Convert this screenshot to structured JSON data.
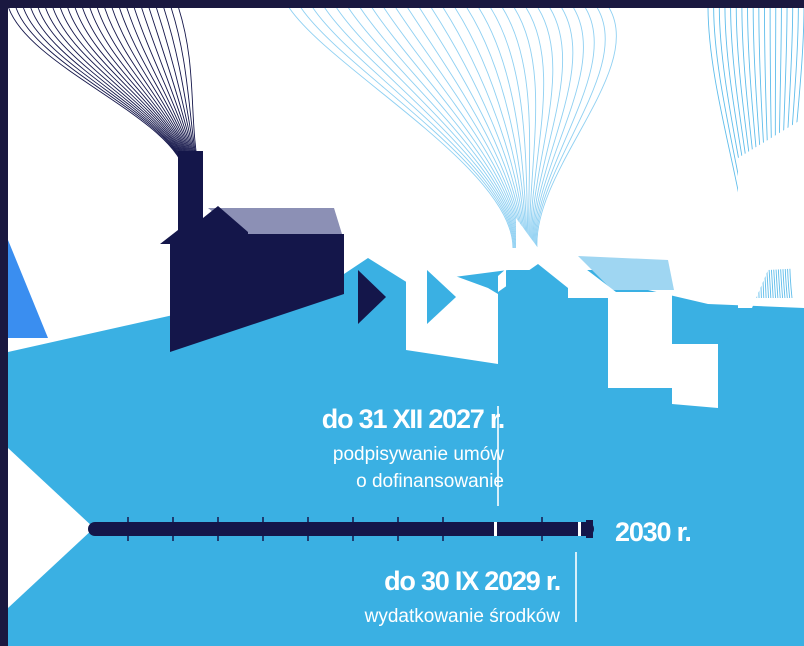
{
  "milestones": {
    "first": {
      "date": "do 31 XII 2027 r.",
      "line1": "podpisywanie umów",
      "line2": "o dofinansowanie"
    },
    "second": {
      "date": "do 30 IX 2029 r.",
      "line1": "wydatkowanie środków"
    }
  },
  "timeline": {
    "end_label": "2030 r."
  },
  "colors": {
    "sky_blue": "#3AB0E3",
    "navy": "#14164A",
    "light_blue": "#9FD6F2",
    "gray_roof": "#8C90B5",
    "bright_blue": "#3A8EF0",
    "white": "#FFFFFF"
  }
}
